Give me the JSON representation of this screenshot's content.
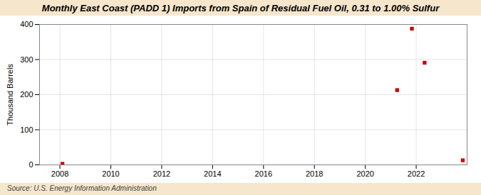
{
  "chart_data": {
    "type": "scatter",
    "title": "Monthly East Coast (PADD 1) Imports from Spain of Residual Fuel Oil, 0.31 to 1.00% Sulfur",
    "ylabel": "Thousand Barrels",
    "annotations": [
      "Source: U.S. Energy Information Administration"
    ],
    "x": [
      2008.1,
      2021.25,
      2021.83,
      2022.33,
      2023.83
    ],
    "values": [
      3,
      213,
      388,
      291,
      13
    ],
    "color": "#cc0000",
    "marker": "square",
    "xlim": [
      2007.2,
      2024.0
    ],
    "xticks": [
      2008,
      2010,
      2012,
      2014,
      2016,
      2018,
      2020,
      2022
    ],
    "ylim": [
      0,
      400
    ],
    "yticks": [
      0,
      100,
      200,
      300,
      400
    ],
    "grid": true
  }
}
